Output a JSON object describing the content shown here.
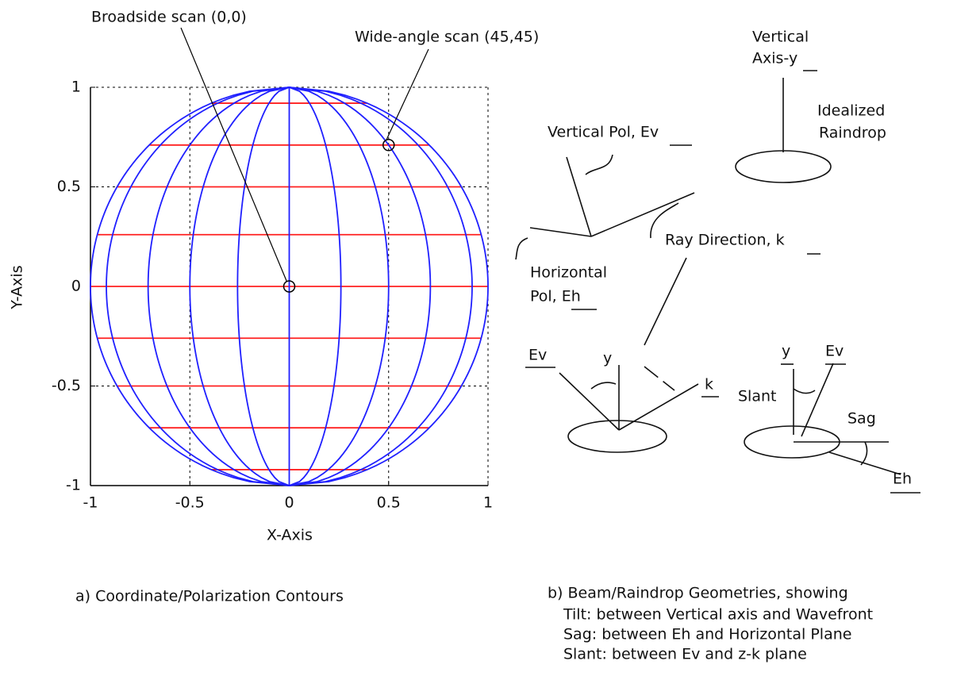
{
  "chart_data": {
    "type": "contour",
    "xlabel": "X-Axis",
    "ylabel": "Y-Axis",
    "xlim": [
      -1,
      1
    ],
    "ylim": [
      -1,
      1
    ],
    "xticks": [
      -1,
      -0.5,
      0,
      0.5,
      1
    ],
    "yticks": [
      -1,
      -0.5,
      0,
      0.5,
      1
    ],
    "grid": true,
    "series": [
      {
        "color": "#ff2020",
        "orientation": "horizontal",
        "levels": [
          -0.92,
          -0.71,
          -0.5,
          -0.26,
          0,
          0.26,
          0.5,
          0.71,
          0.92
        ]
      },
      {
        "color": "#2020ff",
        "orientation": "vertical",
        "levels": [
          -1,
          -0.92,
          -0.71,
          -0.5,
          -0.26,
          0,
          0.26,
          0.5,
          0.71,
          0.92,
          1
        ]
      }
    ],
    "annotations": [
      {
        "text": "Broadside scan (0,0)",
        "x": 0,
        "y": 0
      },
      {
        "text": "Wide-angle scan (45,45)",
        "x": 0.5,
        "y": 0.71
      }
    ],
    "caption": "a) Coordinate/Polarization Contours"
  },
  "diagram": {
    "labels": [
      "Vertical",
      "Axis-y",
      "Idealized",
      "Raindrop",
      "Vertical Pol, Ev",
      "Ray Direction, k",
      "Horizontal",
      "Pol, Eh",
      "Ev",
      "y",
      "k",
      "y",
      "Ev",
      "Slant",
      "Sag",
      "Eh"
    ],
    "caption": [
      "b) Beam/Raindrop Geometries, showing",
      "Tilt: between Vertical axis and Wavefront",
      "Sag: between Eh and Horizontal Plane",
      "Slant: between Ev and z-k plane"
    ]
  }
}
